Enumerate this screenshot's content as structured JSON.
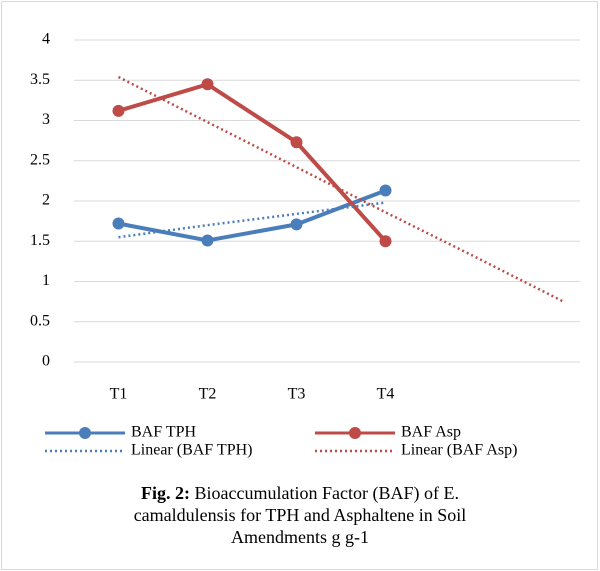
{
  "chart_data": {
    "type": "line",
    "categories": [
      "T1",
      "T2",
      "T3",
      "T4",
      null,
      null
    ],
    "series": [
      {
        "name": "BAF TPH",
        "color": "#4a7ebb",
        "dash": "solid",
        "markers": true,
        "values": [
          1.72,
          1.51,
          1.71,
          2.13,
          null,
          null
        ]
      },
      {
        "name": "BAF Asp",
        "color": "#be4b48",
        "dash": "solid",
        "markers": true,
        "values": [
          3.12,
          3.45,
          2.73,
          1.5,
          null,
          null
        ]
      },
      {
        "name": "Linear (BAF TPH)",
        "color": "#4a7ebb",
        "dash": "dotted",
        "markers": false,
        "values": [
          1.55,
          1.7,
          1.84,
          1.98,
          null,
          null
        ]
      },
      {
        "name": "Linear (BAF Asp)",
        "color": "#be4b48",
        "dash": "dotted",
        "markers": false,
        "values": [
          3.54,
          2.98,
          2.42,
          1.86,
          1.31,
          0.75
        ]
      }
    ],
    "ylim": [
      0,
      4
    ],
    "yticks": [
      0,
      0.5,
      1,
      1.5,
      2,
      2.5,
      3,
      3.5,
      4
    ],
    "grid": true,
    "legend": "bottom",
    "caption_label": "Fig. 2:",
    "caption": "Bioaccumulation Factor (BAF) of E. camaldulensis for TPH and Asphaltene in Soil Amendments g g-1"
  }
}
